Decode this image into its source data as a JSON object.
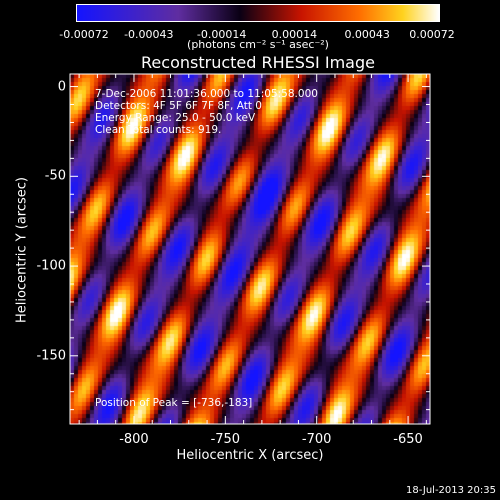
{
  "colorbar": {
    "ticks": [
      "-0.00072",
      "-0.00043",
      "-0.00014",
      "0.00014",
      "0.00043",
      "0.00072"
    ],
    "units": "(photons cm⁻² s⁻¹ asec⁻²)"
  },
  "chart_data": {
    "type": "heatmap",
    "title": "Reconstructed RHESSI Image",
    "xlabel": "Heliocentric X (arcsec)",
    "ylabel": "Heliocentric Y (arcsec)",
    "xlim": [
      -835,
      -638
    ],
    "ylim": [
      -188,
      7
    ],
    "xticks": [
      "-800",
      "-750",
      "-700",
      "-650"
    ],
    "xtick_values": [
      -800,
      -750,
      -700,
      -650
    ],
    "yticks": [
      "0",
      "-50",
      "-100",
      "-150"
    ],
    "ytick_values": [
      0,
      -50,
      -100,
      -150
    ],
    "zlim": [
      -0.00072,
      0.00072
    ],
    "colormap": "red-temperature (blue → purple → black → red → orange → yellow → white)",
    "annotations": {
      "time": "7-Dec-2006 11:01:36.000 to 11:05:58.000",
      "detectors": "Detectors: 4F 5F 6F 7F 8F, Att 0",
      "energy": "Energy Range: 25.0 - 50.0 keV",
      "clean": "Clean     Total counts: 919.",
      "peak": "Position of Peak = [-736,-183]"
    },
    "peak": {
      "x": -736,
      "y": -183
    }
  },
  "footer": {
    "timestamp": "18-Jul-2013 20:35"
  }
}
